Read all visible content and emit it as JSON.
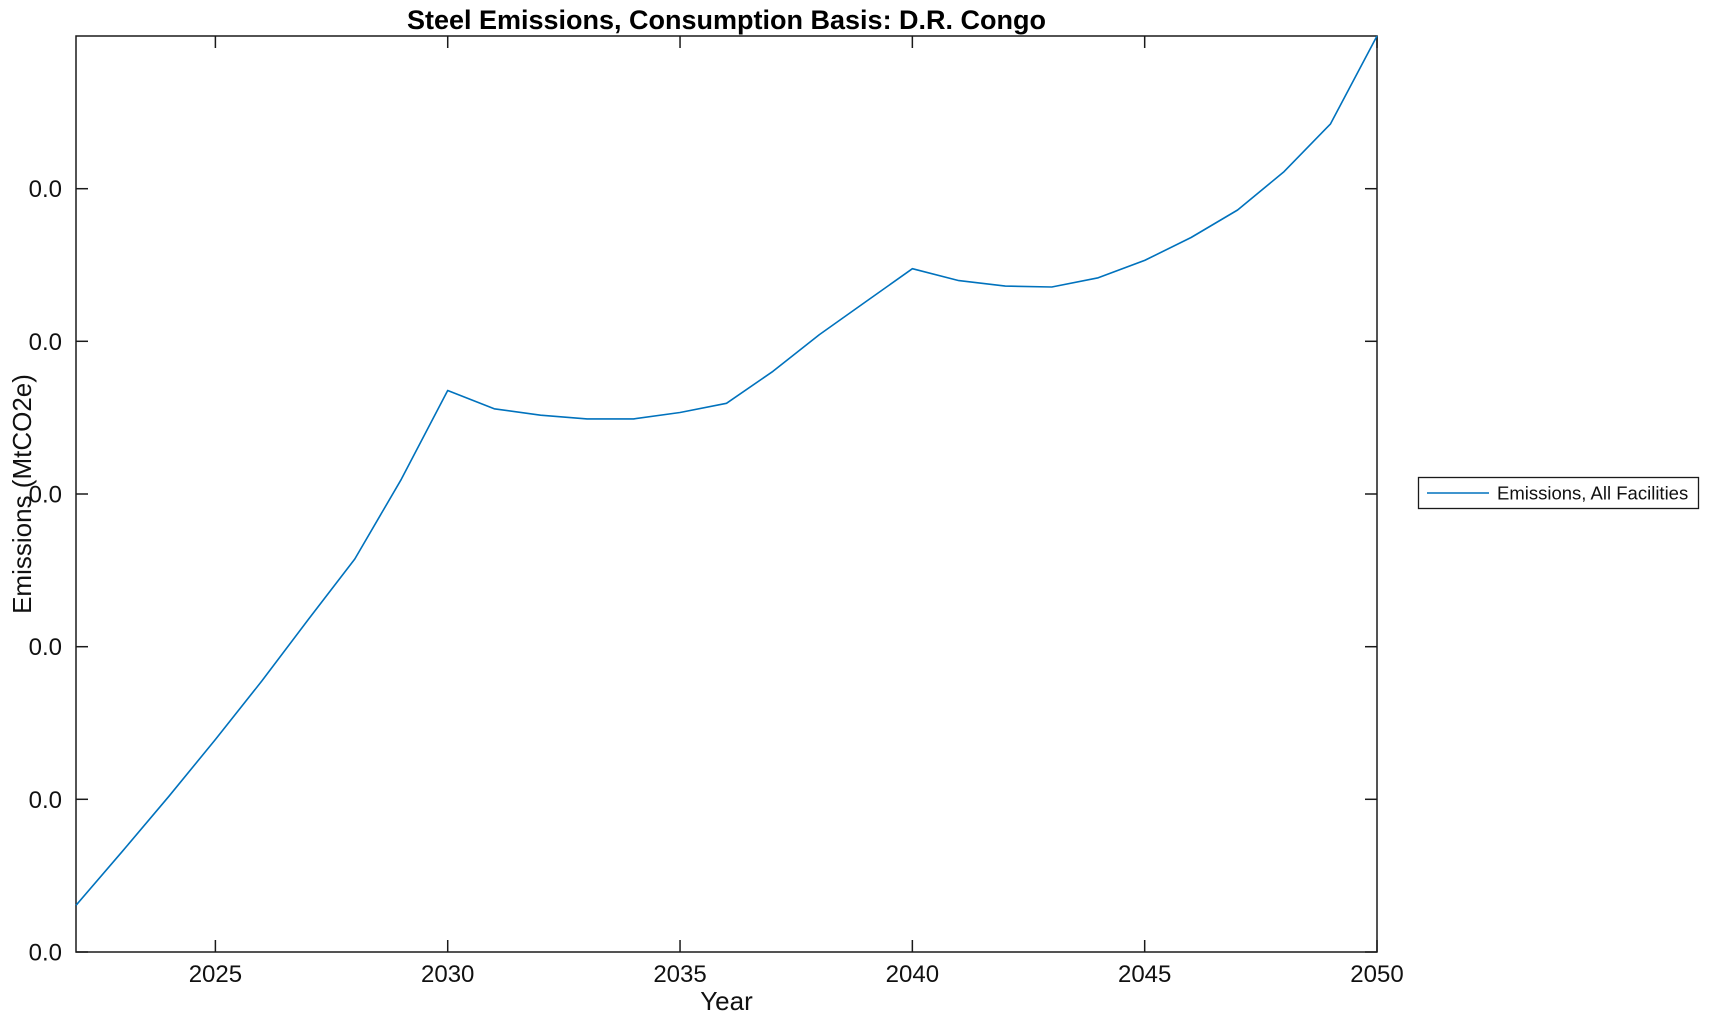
{
  "figure": {
    "background_color": "#ffffff",
    "axis_color": "#1a1a1a"
  },
  "chart_data": {
    "type": "line",
    "title": "Steel Emissions, Consumption Basis: D.R. Congo",
    "xlabel": "Year",
    "ylabel": "Emissions (MtCO2e)",
    "x_range": [
      2022,
      2050
    ],
    "xticks": [
      2025,
      2030,
      2035,
      2040,
      2045,
      2050
    ],
    "xtick_labels": [
      "2025",
      "2030",
      "2035",
      "2040",
      "2045",
      "2050"
    ],
    "ytick_labels": [
      "0.0",
      "0.0",
      "0.0",
      "0.0",
      "0.0",
      "0.0"
    ],
    "yticks_fraction_of_axis": [
      0,
      0.1667,
      0.3333,
      0.5,
      0.6667,
      0.8333
    ],
    "grid": false,
    "legend": {
      "position": "outside-right",
      "entries": [
        "Emissions, All Facilities"
      ]
    },
    "series": [
      {
        "name": "Emissions, All Facilities",
        "color": "#0072BD",
        "x": [
          2022,
          2023,
          2024,
          2025,
          2026,
          2027,
          2028,
          2029,
          2030,
          2031,
          2032,
          2033,
          2034,
          2035,
          2036,
          2037,
          2038,
          2039,
          2040,
          2041,
          2042,
          2043,
          2044,
          2045,
          2046,
          2047,
          2048,
          2049,
          2050
        ],
        "y_fraction_of_axis": [
          0.051,
          0.11,
          0.17,
          0.232,
          0.296,
          0.363,
          0.429,
          0.516,
          0.613,
          0.593,
          0.586,
          0.582,
          0.582,
          0.589,
          0.599,
          0.634,
          0.674,
          0.71,
          0.746,
          0.733,
          0.727,
          0.726,
          0.736,
          0.755,
          0.78,
          0.81,
          0.852,
          0.904,
          1.0
        ]
      }
    ]
  }
}
